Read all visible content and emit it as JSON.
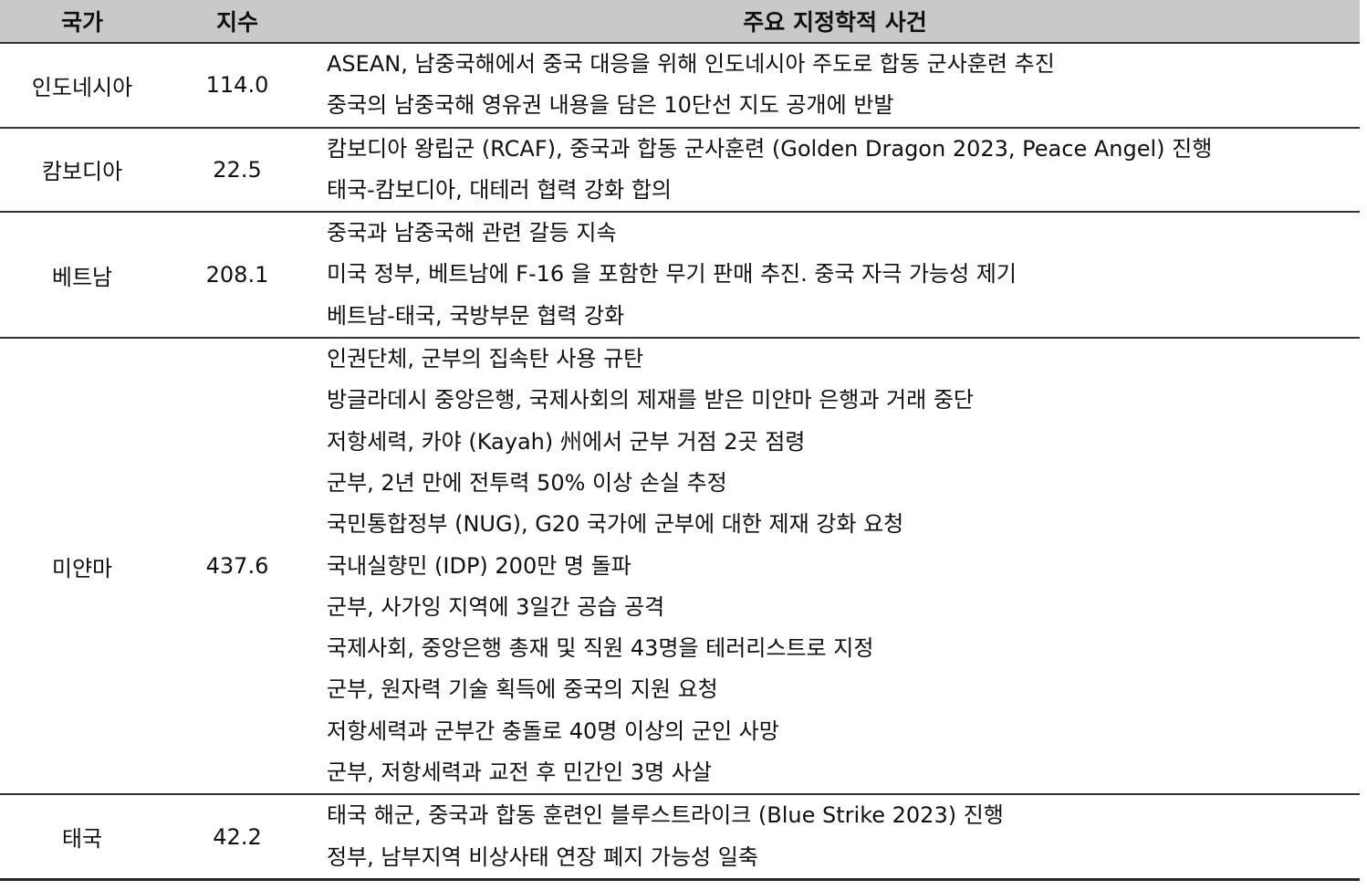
{
  "header": {
    "country": "국가",
    "index": "지수",
    "events": "주요 지정학적 사건"
  },
  "rows": [
    {
      "country": "인도네시아",
      "index": "114.0",
      "events": [
        "ASEAN, 남중국해에서 중국 대응을 위해 인도네시아 주도로 합동 군사훈련 추진",
        "중국의 남중국해 영유권 내용을 담은 10단선 지도 공개에 반발"
      ]
    },
    {
      "country": "캄보디아",
      "index": "22.5",
      "events": [
        "캄보디아 왕립군 (RCAF), 중국과 합동 군사훈련 (Golden Dragon 2023, Peace Angel) 진행",
        "태국-캄보디아, 대테러 협력 강화 합의"
      ]
    },
    {
      "country": "베트남",
      "index": "208.1",
      "events": [
        "중국과 남중국해 관련 갈등 지속",
        "미국 정부, 베트남에 F-16 을 포함한 무기 판매 추진. 중국 자극 가능성 제기",
        "베트남-태국, 국방부문 협력 강화"
      ]
    },
    {
      "country": "미얀마",
      "index": "437.6",
      "events": [
        "인권단체, 군부의 집속탄 사용 규탄",
        "방글라데시 중앙은행, 국제사회의 제재를 받은 미얀마 은행과 거래 중단",
        "저항세력, 카야 (Kayah) 州에서 군부 거점 2곳 점령",
        "군부, 2년 만에 전투력 50% 이상 손실 추정",
        "국민통합정부 (NUG), G20 국가에 군부에 대한 제재 강화 요청",
        "국내실향민 (IDP) 200만 명 돌파",
        "군부, 사가잉 지역에 3일간 공습 공격",
        "국제사회, 중앙은행 총재 및 직원 43명을 테러리스트로 지정",
        "군부, 원자력 기술 획득에 중국의 지원 요청",
        "저항세력과 군부간 충돌로 40명 이상의 군인 사망",
        "군부, 저항세력과 교전 후 민간인 3명 사살"
      ]
    },
    {
      "country": "태국",
      "index": "42.2",
      "events": [
        "태국 해군, 중국과 합동 훈련인 블루스트라이크 (Blue Strike 2023) 진행",
        "정부, 남부지역 비상사태 연장 폐지 가능성 일축"
      ]
    }
  ]
}
